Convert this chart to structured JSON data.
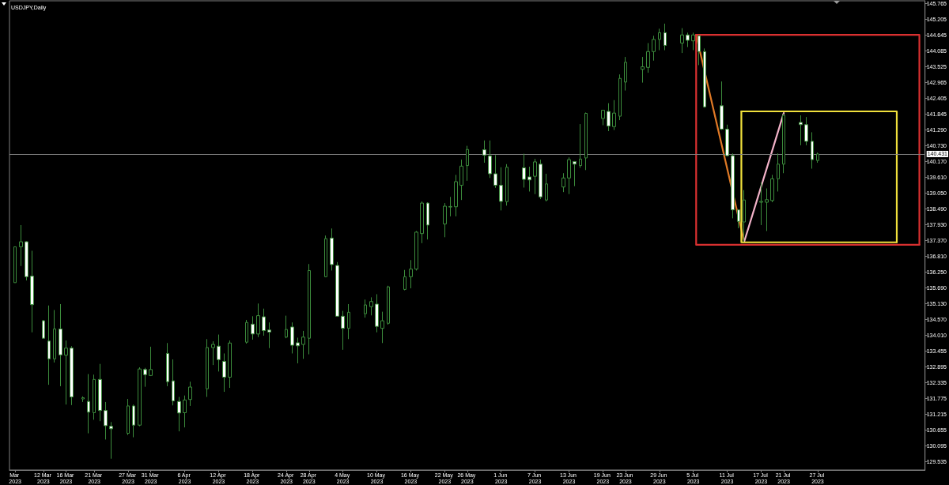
{
  "chart_data": {
    "type": "candlestick",
    "title": "USDJPY,Daily",
    "color": "#3c8c3c",
    "x": [
      "2023-03-07",
      "2023-03-08",
      "2023-03-09",
      "2023-03-10",
      "2023-03-12",
      "2023-03-13",
      "2023-03-14",
      "2023-03-15",
      "2023-03-16",
      "2023-03-17",
      "2023-03-19",
      "2023-03-20",
      "2023-03-21",
      "2023-03-22",
      "2023-03-23",
      "2023-03-24",
      "2023-03-27",
      "2023-03-28",
      "2023-03-29",
      "2023-03-30",
      "2023-03-31",
      "2023-04-03",
      "2023-04-04",
      "2023-04-05",
      "2023-04-06",
      "2023-04-07",
      "2023-04-10",
      "2023-04-11",
      "2023-04-12",
      "2023-04-13",
      "2023-04-14",
      "2023-04-17",
      "2023-04-18",
      "2023-04-19",
      "2023-04-20",
      "2023-04-21",
      "2023-04-24",
      "2023-04-25",
      "2023-04-26",
      "2023-04-27",
      "2023-04-28",
      "2023-05-01",
      "2023-05-02",
      "2023-05-03",
      "2023-05-04",
      "2023-05-05",
      "2023-05-08",
      "2023-05-09",
      "2023-05-10",
      "2023-05-11",
      "2023-05-12",
      "2023-05-15",
      "2023-05-16",
      "2023-05-17",
      "2023-05-18",
      "2023-05-19",
      "2023-05-22",
      "2023-05-23",
      "2023-05-24",
      "2023-05-25",
      "2023-05-26",
      "2023-05-29",
      "2023-05-30",
      "2023-05-31",
      "2023-06-01",
      "2023-06-02",
      "2023-06-05",
      "2023-06-06",
      "2023-06-07",
      "2023-06-08",
      "2023-06-09",
      "2023-06-12",
      "2023-06-13",
      "2023-06-14",
      "2023-06-15",
      "2023-06-16",
      "2023-06-19",
      "2023-06-20",
      "2023-06-21",
      "2023-06-22",
      "2023-06-23",
      "2023-06-26",
      "2023-06-27",
      "2023-06-28",
      "2023-06-29",
      "2023-06-30",
      "2023-07-03",
      "2023-07-04",
      "2023-07-05",
      "2023-07-06",
      "2023-07-07",
      "2023-07-10",
      "2023-07-11",
      "2023-07-12",
      "2023-07-13",
      "2023-07-14",
      "2023-07-17",
      "2023-07-18",
      "2023-07-19",
      "2023-07-20",
      "2023-07-21",
      "2023-07-24",
      "2023-07-25",
      "2023-07-26",
      "2023-07-27"
    ],
    "ohlc": [
      [
        135.87,
        137.14,
        135.87,
        137.14
      ],
      [
        137.14,
        137.91,
        136.46,
        137.32
      ],
      [
        137.32,
        137.34,
        135.95,
        136.08
      ],
      [
        136.1,
        137.0,
        134.11,
        135.09
      ],
      [
        134.52,
        134.55,
        133.88,
        133.9
      ],
      [
        133.8,
        135.06,
        132.25,
        133.17
      ],
      [
        133.17,
        134.9,
        133.04,
        134.23
      ],
      [
        134.23,
        135.11,
        132.2,
        133.31
      ],
      [
        133.3,
        133.82,
        131.55,
        133.55
      ],
      [
        133.55,
        133.62,
        131.53,
        131.82
      ],
      [
        131.75,
        131.84,
        131.64,
        131.79
      ],
      [
        131.66,
        132.63,
        130.53,
        131.28
      ],
      [
        131.26,
        132.61,
        131.01,
        132.44
      ],
      [
        132.44,
        132.99,
        130.96,
        131.34
      ],
      [
        131.34,
        131.64,
        130.31,
        130.8
      ],
      [
        130.78,
        130.93,
        129.63,
        130.69
      ],
      [
        130.53,
        131.75,
        130.47,
        131.5
      ],
      [
        131.5,
        131.55,
        130.39,
        130.82
      ],
      [
        130.82,
        132.87,
        130.78,
        132.81
      ],
      [
        132.79,
        132.85,
        132.18,
        132.61
      ],
      [
        132.58,
        133.6,
        132.56,
        132.79
      ],
      [
        133.36,
        133.73,
        132.2,
        132.36
      ],
      [
        132.39,
        133.15,
        131.52,
        131.68
      ],
      [
        131.66,
        131.82,
        130.6,
        131.25
      ],
      [
        131.26,
        131.87,
        130.74,
        131.71
      ],
      [
        131.73,
        132.36,
        131.5,
        132.17
      ],
      [
        132.11,
        133.87,
        131.82,
        133.57
      ],
      [
        133.57,
        133.79,
        132.95,
        133.68
      ],
      [
        133.62,
        134.03,
        132.72,
        133.14
      ],
      [
        133.08,
        133.36,
        132.0,
        132.52
      ],
      [
        132.52,
        133.82,
        132.14,
        133.73
      ],
      [
        133.76,
        134.55,
        133.71,
        134.46
      ],
      [
        134.4,
        134.68,
        133.85,
        134.05
      ],
      [
        134.05,
        135.13,
        133.94,
        134.7
      ],
      [
        134.66,
        134.95,
        133.99,
        134.17
      ],
      [
        134.19,
        134.46,
        133.55,
        134.12
      ],
      [
        133.94,
        134.7,
        133.9,
        134.21
      ],
      [
        134.3,
        134.46,
        133.36,
        133.65
      ],
      [
        133.74,
        133.92,
        133.01,
        133.63
      ],
      [
        133.68,
        134.16,
        133.17,
        133.94
      ],
      [
        133.9,
        136.53,
        133.33,
        136.3
      ],
      [
        136.08,
        137.54,
        136.06,
        137.43
      ],
      [
        137.45,
        137.79,
        136.3,
        136.51
      ],
      [
        136.48,
        136.6,
        134.66,
        134.68
      ],
      [
        134.68,
        134.87,
        133.49,
        134.25
      ],
      [
        134.25,
        135.11,
        133.87,
        134.82
      ],
      [
        134.77,
        135.27,
        134.63,
        135.08
      ],
      [
        135.02,
        135.35,
        134.71,
        135.2
      ],
      [
        135.11,
        135.46,
        134.11,
        134.32
      ],
      [
        134.25,
        134.84,
        133.73,
        134.52
      ],
      [
        134.43,
        135.76,
        134.38,
        135.72
      ],
      [
        135.63,
        136.32,
        135.6,
        136.08
      ],
      [
        136.08,
        136.67,
        135.67,
        136.35
      ],
      [
        136.35,
        137.7,
        136.3,
        137.66
      ],
      [
        137.61,
        138.75,
        137.27,
        138.69
      ],
      [
        138.69,
        138.72,
        137.4,
        137.91
      ],
      [
        137.95,
        138.69,
        137.48,
        138.58
      ],
      [
        138.55,
        138.91,
        138.22,
        138.57
      ],
      [
        138.56,
        139.69,
        138.22,
        139.45
      ],
      [
        139.32,
        140.23,
        138.8,
        140.0
      ],
      [
        140.02,
        140.72,
        139.48,
        140.59
      ],
      [
        140.58,
        140.91,
        140.12,
        140.39
      ],
      [
        140.36,
        140.91,
        139.58,
        139.73
      ],
      [
        139.73,
        140.39,
        139.23,
        139.32
      ],
      [
        139.32,
        139.96,
        138.43,
        138.75
      ],
      [
        138.74,
        140.07,
        138.6,
        139.96
      ],
      [
        139.94,
        140.44,
        139.24,
        139.53
      ],
      [
        139.62,
        139.98,
        139.1,
        139.51
      ],
      [
        139.64,
        140.26,
        139.01,
        140.15
      ],
      [
        140.07,
        140.23,
        138.83,
        138.91
      ],
      [
        138.8,
        139.73,
        138.75,
        139.37
      ],
      [
        139.26,
        139.75,
        139.08,
        139.58
      ],
      [
        139.58,
        140.31,
        139.01,
        140.23
      ],
      [
        140.16,
        140.18,
        139.29,
        140.07
      ],
      [
        140.02,
        141.49,
        139.94,
        140.25
      ],
      [
        140.29,
        141.9,
        139.86,
        141.87
      ],
      [
        141.69,
        141.99,
        141.45,
        141.98
      ],
      [
        141.94,
        142.23,
        141.24,
        141.42
      ],
      [
        141.4,
        142.34,
        141.28,
        141.88
      ],
      [
        141.77,
        143.25,
        141.63,
        143.11
      ],
      [
        142.98,
        143.87,
        142.68,
        143.68
      ],
      [
        143.43,
        143.87,
        142.96,
        143.52
      ],
      [
        143.5,
        144.36,
        143.31,
        144.06
      ],
      [
        144.06,
        144.62,
        143.74,
        144.49
      ],
      [
        144.49,
        144.87,
        144.11,
        144.73
      ],
      [
        144.73,
        145.05,
        144.11,
        144.28
      ],
      [
        144.36,
        144.89,
        144.01,
        144.65
      ],
      [
        144.65,
        144.73,
        144.22,
        144.46
      ],
      [
        144.44,
        144.73,
        144.11,
        144.65
      ],
      [
        144.62,
        144.65,
        143.58,
        144.06
      ],
      [
        144.06,
        144.17,
        142.07,
        142.1
      ],
      [
        142.14,
        143.0,
        141.28,
        141.31
      ],
      [
        141.31,
        141.47,
        140.34,
        140.37
      ],
      [
        140.37,
        140.45,
        138.15,
        138.45
      ],
      [
        138.45,
        138.47,
        137.8,
        138.04
      ],
      [
        138.02,
        139.15,
        137.32,
        138.8
      ],
      [
        138.72,
        139.42,
        137.91,
        138.75
      ],
      [
        138.72,
        139.21,
        137.7,
        138.81
      ],
      [
        138.78,
        139.69,
        138.72,
        139.55
      ],
      [
        139.55,
        140.45,
        139.1,
        140.07
      ],
      [
        140.07,
        141.85,
        139.75,
        141.8
      ],
      [
        141.55,
        141.8,
        140.74,
        141.47
      ],
      [
        141.47,
        141.74,
        140.74,
        140.88
      ],
      [
        140.88,
        141.2,
        139.91,
        140.23
      ],
      [
        140.2,
        140.48,
        140.12,
        140.43
      ]
    ],
    "colors": [
      "#000000",
      "#000000",
      "#ffffff",
      "#ffffff",
      "#ffffff",
      "#ffffff",
      "#000000",
      "#ffffff",
      "#000000",
      "#ffffff",
      "#000000",
      "#ffffff",
      "#000000",
      "#ffffff",
      "#ffffff",
      "#ffffff",
      "#000000",
      "#ffffff",
      "#000000",
      "#ffffff",
      "#000000",
      "#ffffff",
      "#ffffff",
      "#ffffff",
      "#000000",
      "#000000",
      "#000000",
      "#000000",
      "#ffffff",
      "#ffffff",
      "#000000",
      "#000000",
      "#ffffff",
      "#000000",
      "#ffffff",
      "#ffffff",
      "#000000",
      "#ffffff",
      "#ffffff",
      "#000000",
      "#000000",
      "#000000",
      "#ffffff",
      "#ffffff",
      "#ffffff",
      "#000000",
      "#000000",
      "#000000",
      "#ffffff",
      "#000000",
      "#000000",
      "#000000",
      "#000000",
      "#000000",
      "#000000",
      "#ffffff",
      "#000000",
      "#000000",
      "#000000",
      "#000000",
      "#000000",
      "#ffffff",
      "#ffffff",
      "#ffffff",
      "#ffffff",
      "#000000",
      "#ffffff",
      "#ffffff",
      "#000000",
      "#ffffff",
      "#000000",
      "#000000",
      "#000000",
      "#ffffff",
      "#000000",
      "#000000",
      "#000000",
      "#ffffff",
      "#000000",
      "#000000",
      "#000000",
      "#000000",
      "#000000",
      "#000000",
      "#000000",
      "#ffffff",
      "#000000",
      "#ffffff",
      "#000000",
      "#ffffff",
      "#ffffff",
      "#ffffff",
      "#ffffff",
      "#ffffff",
      "#ffffff",
      "#000000",
      "#000000",
      "#000000",
      "#000000",
      "#000000",
      "#000000",
      "#ffffff",
      "#ffffff",
      "#ffffff",
      "#000000"
    ],
    "series": [
      {
        "type": "line",
        "color": "#e07a26",
        "x": [
          "2023-07-05T12:00",
          "2023-07-14"
        ],
        "values": [
          144.65,
          137.32
        ]
      },
      {
        "type": "line",
        "color": "#f2b2c8",
        "x": [
          "2023-07-14",
          "2023-07-21"
        ],
        "values": [
          137.32,
          141.88
        ]
      },
      {
        "type": "line",
        "color": "#d93030",
        "x": [
          "2023-07-05T12:00",
          "2023-08-14",
          "2023-08-14"
        ],
        "values": [
          144.65,
          144.65,
          137.21
        ]
      },
      {
        "type": "line",
        "color": "#d93030",
        "x": [
          "2023-08-14",
          "2023-07-05T12:00",
          "2023-07-05T12:00"
        ],
        "values": [
          137.21,
          137.21,
          144.65
        ]
      },
      {
        "type": "line",
        "color": "#f0e03c",
        "x": [
          "2023-07-13T12:00",
          "2023-08-10",
          "2023-08-10"
        ],
        "values": [
          141.94,
          141.94,
          137.3
        ]
      },
      {
        "type": "line",
        "color": "#f0e03c",
        "x": [
          "2023-08-10",
          "2023-07-13T12:00",
          "2023-07-13T12:00"
        ],
        "values": [
          137.3,
          137.3,
          141.94
        ]
      }
    ],
    "xlim": [
      "2023-03-06",
      "2023-08-15"
    ],
    "xticks": [
      {
        "value": "2023-03-07",
        "label": "Mar 2023"
      },
      {
        "value": "2023-03-12",
        "label": "12 Mar 2023"
      },
      {
        "value": "2023-03-16",
        "label": "16 Mar 2023"
      },
      {
        "value": "2023-03-21",
        "label": "21 Mar 2023"
      },
      {
        "value": "2023-03-27",
        "label": "27 Mar 2023"
      },
      {
        "value": "2023-03-31",
        "label": "31 Mar 2023"
      },
      {
        "value": "2023-04-06",
        "label": "6 Apr 2023"
      },
      {
        "value": "2023-04-12",
        "label": "12 Apr 2023"
      },
      {
        "value": "2023-04-18",
        "label": "18 Apr 2023"
      },
      {
        "value": "2023-04-24",
        "label": "24 Apr 2023"
      },
      {
        "value": "2023-04-28",
        "label": "28 Apr 2023"
      },
      {
        "value": "2023-05-04",
        "label": "4 May 2023"
      },
      {
        "value": "2023-05-10",
        "label": "10 May 2023"
      },
      {
        "value": "2023-05-16",
        "label": "16 May 2023"
      },
      {
        "value": "2023-05-22",
        "label": "22 May 2023"
      },
      {
        "value": "2023-05-26",
        "label": "26 May 2023"
      },
      {
        "value": "2023-06-01",
        "label": "1 Jun 2023"
      },
      {
        "value": "2023-06-07",
        "label": "7 Jun 2023"
      },
      {
        "value": "2023-06-13",
        "label": "13 Jun 2023"
      },
      {
        "value": "2023-06-19",
        "label": "19 Jun 2023"
      },
      {
        "value": "2023-06-23",
        "label": "23 Jun 2023"
      },
      {
        "value": "2023-06-29",
        "label": "29 Jun 2023"
      },
      {
        "value": "2023-07-05",
        "label": "5 Jul 2023"
      },
      {
        "value": "2023-07-11",
        "label": "11 Jul 2023"
      },
      {
        "value": "2023-07-17",
        "label": "17 Jul 2023"
      },
      {
        "value": "2023-07-21",
        "label": "21 Jul 2023"
      },
      {
        "value": "2023-07-27",
        "label": "27 Jul 2023"
      }
    ],
    "ylim": [
      129.23,
      145.86
    ],
    "yticks": [
      145.765,
      145.205,
      144.645,
      144.085,
      143.525,
      142.965,
      142.405,
      141.845,
      {
        "value": 141.29,
        "label": "141.290"
      },
      {
        "value": 140.73,
        "label": "140.730"
      },
      {
        "value": 140.17,
        "label": "140.170"
      },
      {
        "value": 139.61,
        "label": "139.610"
      },
      {
        "value": 139.05,
        "label": "139.050"
      },
      {
        "value": 138.49,
        "label": "138.490"
      },
      {
        "value": 137.93,
        "label": "137.930"
      },
      {
        "value": 137.37,
        "label": "137.370"
      },
      {
        "value": 136.81,
        "label": "136.810"
      },
      {
        "value": 136.25,
        "label": "136.250"
      },
      {
        "value": 135.69,
        "label": "135.690"
      },
      {
        "value": 135.13,
        "label": "135.130"
      },
      {
        "value": 134.57,
        "label": "134.570"
      },
      {
        "value": 134.01,
        "label": "134.010"
      },
      133.455,
      132.895,
      132.335,
      131.775,
      131.215,
      130.655,
      130.095,
      129.535
    ],
    "ref_lines": [
      {
        "axis": "y",
        "value": 140.431,
        "label": "140.431",
        "color": "#808080"
      }
    ]
  }
}
